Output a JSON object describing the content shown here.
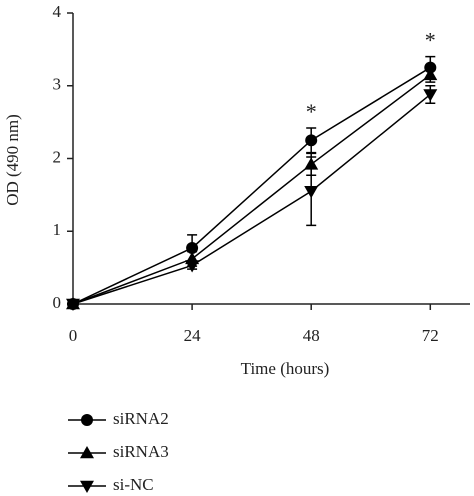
{
  "chart_data": {
    "type": "line",
    "x_label": "Time (hours)",
    "y_label": "OD (490 nm)",
    "x": [
      0,
      24,
      48,
      72
    ],
    "series": [
      {
        "name": "siRNA2",
        "color": "#000000",
        "marker": "circle",
        "values": [
          0,
          0.77,
          2.25,
          3.25
        ],
        "errors": [
          0,
          0.18,
          0.17,
          0.15
        ]
      },
      {
        "name": "siRNA3",
        "color": "#000000",
        "marker": "triangle-up",
        "values": [
          0,
          0.62,
          1.92,
          3.15
        ],
        "errors": [
          0,
          0.1,
          0.15,
          0.1
        ]
      },
      {
        "name": "si-NC",
        "color": "#000000",
        "marker": "triangle-down",
        "values": [
          0,
          0.53,
          1.55,
          2.88
        ],
        "errors": [
          0,
          0.05,
          0.47,
          0.12
        ]
      }
    ],
    "annotations": [
      {
        "text": "*",
        "x": 48
      },
      {
        "text": "*",
        "x": 72
      }
    ],
    "xlim": [
      0,
      80
    ],
    "ylim": [
      0,
      4
    ],
    "xticks": [
      0,
      24,
      48,
      72
    ],
    "yticks": [
      0,
      1,
      2,
      3,
      4
    ],
    "grid": false
  }
}
